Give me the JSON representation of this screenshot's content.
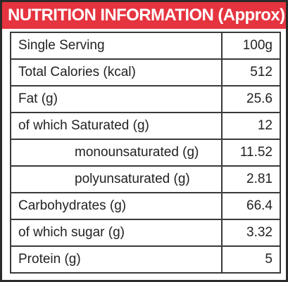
{
  "label": {
    "title": "NUTRITION INFORMATION (Approx)",
    "rows": [
      {
        "name": "Single Serving",
        "value": "100g"
      },
      {
        "name": "Total Calories (kcal)",
        "value": "512"
      },
      {
        "name": "Fat (g)",
        "value": "25.6"
      },
      {
        "name": "of which Saturated (g)",
        "value": "12"
      },
      {
        "name": "monounsaturated (g)",
        "value": "11.52"
      },
      {
        "name": "polyunsaturated (g)",
        "value": "2.81"
      },
      {
        "name": "Carbohydrates (g)",
        "value": "66.4"
      },
      {
        "name": "of which sugar (g)",
        "value": "3.32"
      },
      {
        "name": "Protein (g)",
        "value": "5"
      }
    ]
  },
  "colors": {
    "header_background": "#e5343f",
    "header_text": "#ffffff",
    "border": "#2b2b2b",
    "body_text": "#222222"
  }
}
